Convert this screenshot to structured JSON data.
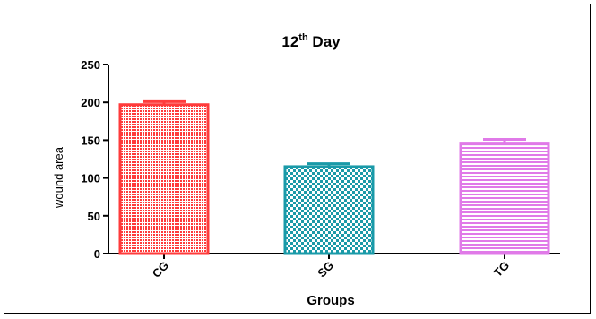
{
  "chart_data": {
    "type": "bar",
    "title": "12",
    "title_superscript": "th",
    "title_suffix": " Day",
    "xlabel": "Groups",
    "ylabel": "wound area",
    "categories": [
      "CG",
      "SG",
      "TG"
    ],
    "values": [
      197,
      115,
      145
    ],
    "errors": [
      4,
      4,
      6
    ],
    "ylim": [
      0,
      250
    ],
    "yticks": [
      0,
      50,
      100,
      150,
      200,
      250
    ],
    "ytick_labels": [
      "0",
      "50",
      "100",
      "150",
      "200",
      "250"
    ],
    "grid": false,
    "legend": "none",
    "colors": [
      "#ff3b3b",
      "#1a9aa8",
      "#e07ae8"
    ],
    "patterns": [
      "dense-dots",
      "checker",
      "horizontal-lines"
    ]
  }
}
